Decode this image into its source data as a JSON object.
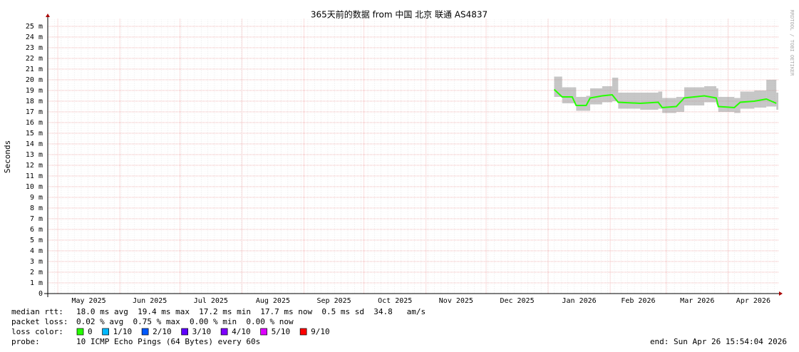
{
  "chart_data": {
    "type": "line",
    "title": "365天前的数据 from 中国 北京 联通 AS4837",
    "y_label": "Seconds",
    "side_note": "RRDTOOL / TOBI OETIKER",
    "xlim": [
      "2025-04-26",
      "2026-04-26"
    ],
    "xticks": [
      {
        "value": "2025-05",
        "label": "May 2025"
      },
      {
        "value": "2025-06",
        "label": "Jun 2025"
      },
      {
        "value": "2025-07",
        "label": "Jul 2025"
      },
      {
        "value": "2025-08",
        "label": "Aug 2025"
      },
      {
        "value": "2025-09",
        "label": "Sep 2025"
      },
      {
        "value": "2025-10",
        "label": "Oct 2025"
      },
      {
        "value": "2025-11",
        "label": "Nov 2025"
      },
      {
        "value": "2025-12",
        "label": "Dec 2025"
      },
      {
        "value": "2026-01",
        "label": "Jan 2026"
      },
      {
        "value": "2026-02",
        "label": "Feb 2026"
      },
      {
        "value": "2026-03",
        "label": "Mar 2026"
      },
      {
        "value": "2026-04",
        "label": "Apr 2026"
      }
    ],
    "ylim": [
      0,
      0.0257
    ],
    "yticks": [
      0,
      {
        "value": 0.001,
        "label": "1 m"
      },
      {
        "value": 0.002,
        "label": "2 m"
      },
      {
        "value": 0.003,
        "label": "3 m"
      },
      {
        "value": 0.004,
        "label": "4 m"
      },
      {
        "value": 0.005,
        "label": "5 m"
      },
      {
        "value": 0.006,
        "label": "6 m"
      },
      {
        "value": 0.007,
        "label": "7 m"
      },
      {
        "value": 0.008,
        "label": "8 m"
      },
      {
        "value": 0.009,
        "label": "9 m"
      },
      {
        "value": 0.01,
        "label": "10 m"
      },
      {
        "value": 0.011,
        "label": "11 m"
      },
      {
        "value": 0.012,
        "label": "12 m"
      },
      {
        "value": 0.013,
        "label": "13 m"
      },
      {
        "value": 0.014,
        "label": "14 m"
      },
      {
        "value": 0.015,
        "label": "15 m"
      },
      {
        "value": 0.016,
        "label": "16 m"
      },
      {
        "value": 0.017,
        "label": "17 m"
      },
      {
        "value": 0.018,
        "label": "18 m"
      },
      {
        "value": 0.019,
        "label": "19 m"
      },
      {
        "value": 0.02,
        "label": "20 m"
      },
      {
        "value": 0.021,
        "label": "21 m"
      },
      {
        "value": 0.022,
        "label": "22 m"
      },
      {
        "value": 0.023,
        "label": "23 m"
      },
      {
        "value": 0.024,
        "label": "24 m"
      },
      {
        "value": 0.025,
        "label": "25 m"
      }
    ],
    "grid": true,
    "x": [
      "2026-01-04",
      "2026-01-08",
      "2026-01-13",
      "2026-01-15",
      "2026-01-20",
      "2026-01-22",
      "2026-01-28",
      "2026-02-02",
      "2026-02-05",
      "2026-02-16",
      "2026-02-25",
      "2026-02-27",
      "2026-03-06",
      "2026-03-10",
      "2026-03-20",
      "2026-03-26",
      "2026-03-27",
      "2026-04-04",
      "2026-04-07",
      "2026-04-14",
      "2026-04-20",
      "2026-04-25"
    ],
    "series": [
      {
        "color": "#26ff00",
        "values": [
          0.0191,
          0.0184,
          0.0184,
          0.0176,
          0.0176,
          0.0183,
          0.0185,
          0.0186,
          0.0179,
          0.0178,
          0.0179,
          0.0174,
          0.0175,
          0.0183,
          0.0185,
          0.0183,
          0.0175,
          0.0174,
          0.0179,
          0.018,
          0.0182,
          0.0178
        ],
        "low": [
          0.0184,
          0.0178,
          0.0178,
          0.0171,
          0.0171,
          0.0177,
          0.0179,
          0.018,
          0.0173,
          0.0172,
          0.0173,
          0.0169,
          0.017,
          0.0176,
          0.0179,
          0.0177,
          0.017,
          0.0169,
          0.0173,
          0.0174,
          0.0175,
          0.0172
        ],
        "high": [
          0.0203,
          0.0193,
          0.0193,
          0.0184,
          0.0185,
          0.0192,
          0.0194,
          0.0202,
          0.0188,
          0.0188,
          0.0189,
          0.0183,
          0.0184,
          0.0193,
          0.0194,
          0.0192,
          0.0184,
          0.0183,
          0.0189,
          0.019,
          0.02,
          0.0188
        ]
      }
    ],
    "footer": {
      "median_rtt_label": "median rtt:",
      "median_rtt": "18.0 ms avg  19.4 ms max  17.2 ms min  17.7 ms now  0.5 ms sd  34.8   am/s",
      "packet_loss_label": "packet loss:",
      "packet_loss": "0.02 % avg  0.75 % max  0.00 % min  0.00 % now",
      "loss_color_label": "loss color:",
      "loss_colors": [
        {
          "label": "0",
          "color": "#26ff00"
        },
        {
          "label": "1/10",
          "color": "#00b8ff"
        },
        {
          "label": "2/10",
          "color": "#0059ff"
        },
        {
          "label": "3/10",
          "color": "#5e00ff"
        },
        {
          "label": "4/10",
          "color": "#7e00ff"
        },
        {
          "label": "5/10",
          "color": "#dd00ff"
        },
        {
          "label": "9/10",
          "color": "#ff0000"
        }
      ],
      "probe_label": "probe:",
      "probe": "10 ICMP Echo Pings (64 Bytes) every 60s",
      "end": "end: Sun Apr 26 15:54:04 2026"
    }
  }
}
